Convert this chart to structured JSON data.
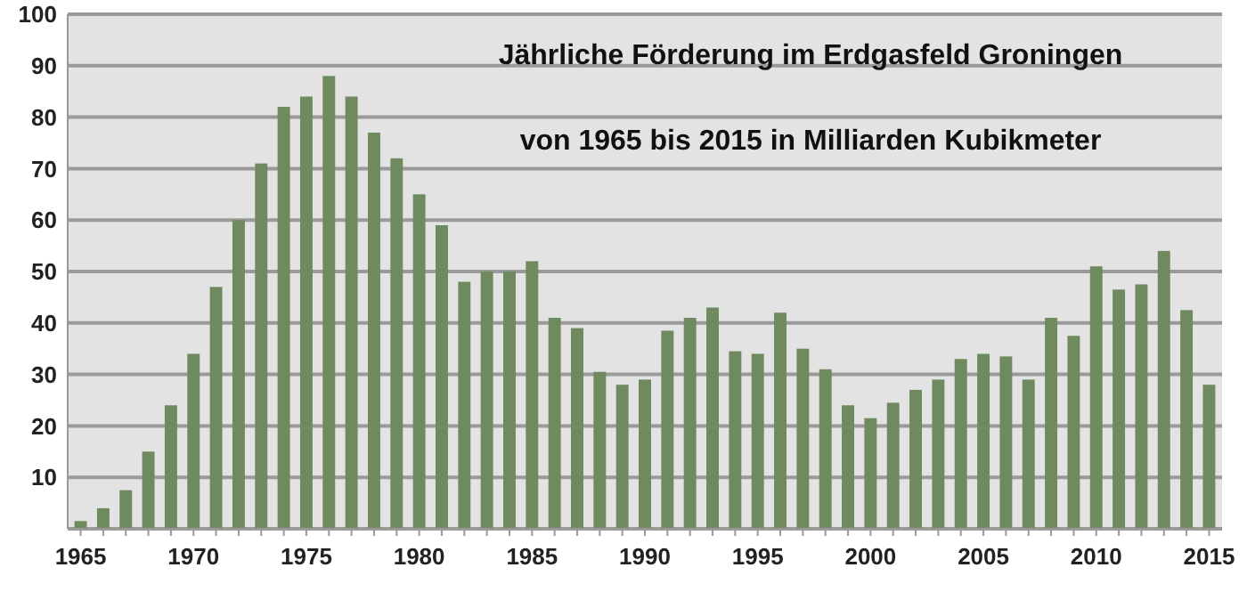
{
  "chart_data": {
    "type": "bar",
    "title": "Jährliche Förderung im Erdgasfeld Groningen",
    "subtitle": "von 1965 bis 2015 in Milliarden Kubikmeter",
    "categories": [
      "1965",
      null,
      null,
      null,
      null,
      "1970",
      null,
      null,
      null,
      null,
      "1975",
      null,
      null,
      null,
      null,
      "1980",
      null,
      null,
      null,
      null,
      "1985",
      null,
      null,
      null,
      null,
      "1990",
      null,
      null,
      null,
      null,
      "1995",
      null,
      null,
      null,
      null,
      "2000",
      null,
      null,
      null,
      null,
      "2005",
      null,
      null,
      null,
      null,
      "2010",
      null,
      null,
      null,
      null,
      "2015"
    ],
    "values": [
      1.5,
      4,
      7.5,
      15,
      24,
      34,
      47,
      60,
      71,
      82,
      84,
      88,
      84,
      77,
      72,
      65,
      59,
      48,
      50,
      50,
      52,
      41,
      39,
      30.5,
      28,
      29,
      38.5,
      41,
      43,
      34.5,
      34,
      42,
      35,
      31,
      24,
      21.5,
      24.5,
      27,
      29,
      33,
      34,
      33.5,
      29,
      41,
      37.5,
      51,
      46.5,
      47.5,
      54,
      42.5,
      28
    ],
    "color": "#6e8a5e",
    "ylim": [
      0,
      100
    ],
    "yticks": [
      {
        "value": 0,
        "label": null
      },
      10,
      20,
      30,
      40,
      50,
      60,
      70,
      80,
      90,
      100
    ],
    "grid": "y"
  }
}
